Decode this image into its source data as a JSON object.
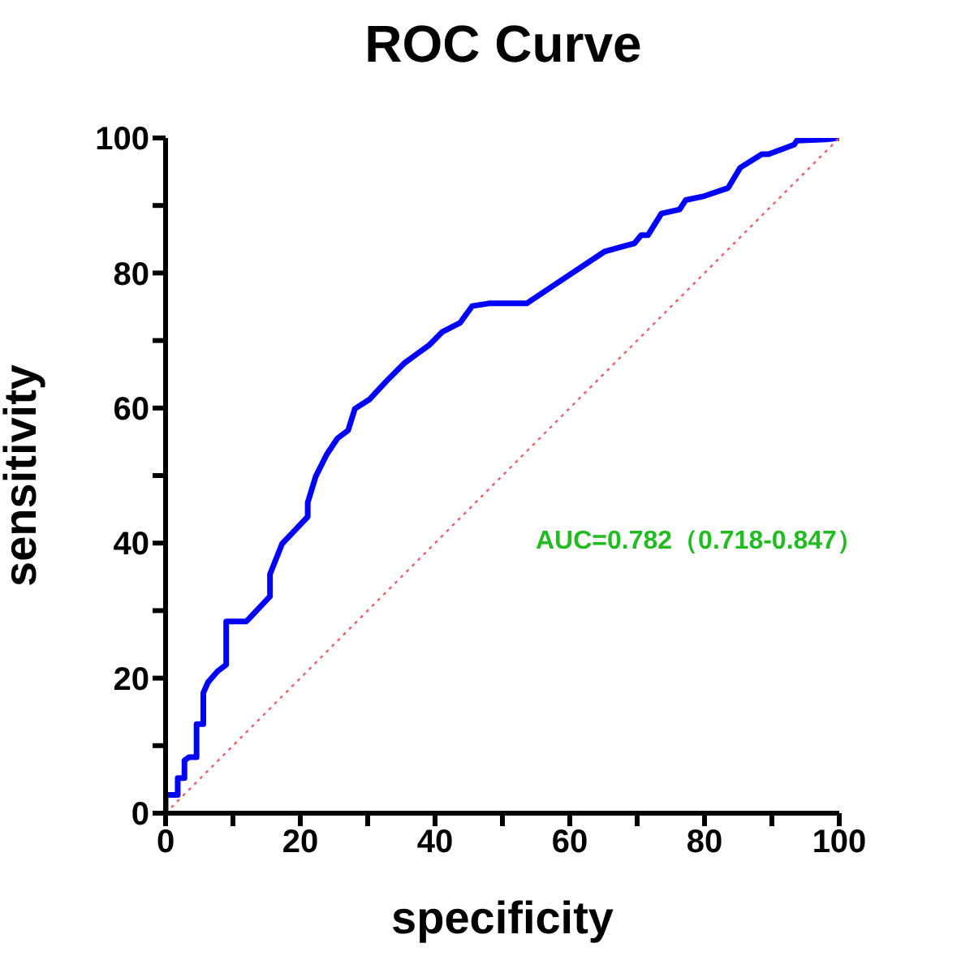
{
  "chart_data": {
    "type": "line",
    "title": "ROC Curve",
    "xlabel": "specificity",
    "ylabel": "sensitivity",
    "xlim": [
      0,
      100
    ],
    "ylim": [
      0,
      100
    ],
    "xticks": [
      0,
      {
        "value": 10,
        "label": null
      },
      20,
      {
        "value": 30,
        "label": null
      },
      40,
      {
        "value": 50,
        "label": null
      },
      60,
      {
        "value": 70,
        "label": null
      },
      80,
      {
        "value": 90,
        "label": null
      },
      100
    ],
    "yticks": [
      0,
      {
        "value": 10,
        "label": null
      },
      20,
      {
        "value": 30,
        "label": null
      },
      40,
      {
        "value": 50,
        "label": null
      },
      60,
      {
        "value": 70,
        "label": null
      },
      80,
      {
        "value": 90,
        "label": null
      },
      100
    ],
    "grid": false,
    "marker": "none",
    "annotations": [
      "AUC=0.782（0.718-0.847）"
    ],
    "series": [
      {
        "color": "#0000ff",
        "line_style": "solid",
        "x": [
          0,
          0,
          1.8,
          1.8,
          2.8,
          2.8,
          3.5,
          4.6,
          4.6,
          5.6,
          5.6,
          6.3,
          7.7,
          9,
          9,
          12,
          15.5,
          15.5,
          17.3,
          19.2,
          21.1,
          21.1,
          22.3,
          23.9,
          25.5,
          27.1,
          28.1,
          30.3,
          32.7,
          35.5,
          39.1,
          41.1,
          43.7,
          45.5,
          48,
          53.6,
          59.6,
          65.2,
          69.6,
          70.6,
          71.6,
          73.6,
          76.3,
          77.2,
          80,
          83.5,
          85.3,
          88.5,
          89.5,
          93.3,
          93.7,
          98.1,
          100
        ],
        "values": [
          0,
          2.7,
          2.7,
          5.2,
          5.2,
          7.8,
          8.3,
          8.3,
          13.2,
          13.2,
          17.8,
          19.4,
          21,
          22,
          28.4,
          28.4,
          32.1,
          35.4,
          39.9,
          41.9,
          43.9,
          46,
          49.9,
          53.1,
          55.5,
          56.7,
          59.9,
          61.3,
          63.9,
          66.7,
          69.3,
          71.3,
          72.6,
          75.1,
          75.5,
          75.5,
          79.5,
          83.2,
          84.4,
          85.6,
          85.6,
          88.8,
          89.4,
          90.8,
          91.4,
          92.6,
          95.6,
          97.6,
          97.6,
          99,
          99.6,
          99.8,
          100
        ]
      },
      {
        "color": "#e8606a",
        "line_style": "dotted",
        "x": [
          0,
          100
        ],
        "values": [
          0,
          100
        ]
      }
    ]
  }
}
